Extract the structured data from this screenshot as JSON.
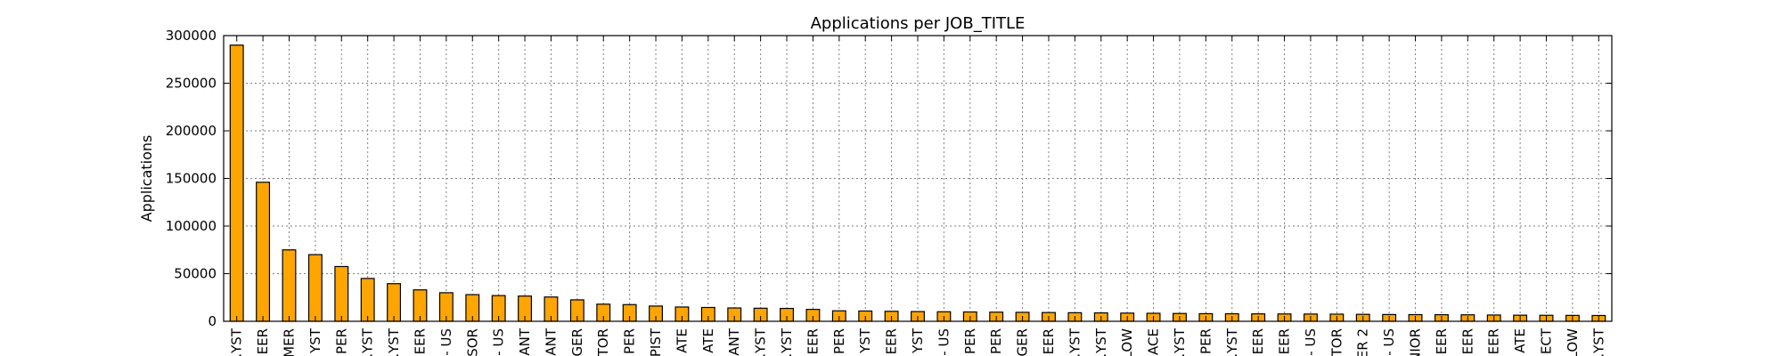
{
  "chart_data": {
    "type": "bar",
    "title": "Applications per JOB_TITLE",
    "xlabel": "",
    "ylabel": "Applications",
    "ylim": [
      0,
      300000
    ],
    "yticks": [
      0,
      50000,
      100000,
      150000,
      200000,
      250000,
      300000
    ],
    "grid": true,
    "bar_color": "#ffa500",
    "edge_color": "#000000",
    "categories": [
      ".YST",
      "EER",
      "MER",
      "YST",
      "PER",
      ".YST",
      ".YST",
      "EER",
      "- US",
      "SOR",
      "- US",
      "ANT",
      "ANT",
      "GER",
      "TOR",
      "PER",
      "PIST",
      "ATE",
      "ATE",
      "ANT",
      ".YST",
      ".YST",
      "EER",
      "PER",
      "YST",
      "EER",
      "YST",
      "- US",
      "PER",
      "PER",
      "GER",
      "EER",
      ".YST",
      ".YST",
      "LOW",
      "ACE",
      ".YST",
      "PER",
      ".YST",
      "EER",
      "EER",
      "- US",
      "TOR",
      "ER 2",
      "- US",
      "NIOR",
      "EER",
      "EER",
      "EER",
      "ATE",
      "ECT",
      "LOW",
      ".YST"
    ],
    "values": [
      290000,
      146000,
      75000,
      70000,
      57500,
      45000,
      39500,
      33000,
      30000,
      28000,
      27000,
      26500,
      25500,
      22500,
      18000,
      17500,
      16000,
      15000,
      14500,
      14000,
      13700,
      13500,
      12500,
      11000,
      10800,
      10500,
      10200,
      10000,
      9800,
      9600,
      9400,
      9200,
      9000,
      8800,
      8600,
      8400,
      8200,
      8000,
      7900,
      7800,
      7700,
      7600,
      7500,
      7300,
      7100,
      7000,
      6900,
      6800,
      6600,
      6400,
      6300,
      6200,
      6100
    ]
  }
}
